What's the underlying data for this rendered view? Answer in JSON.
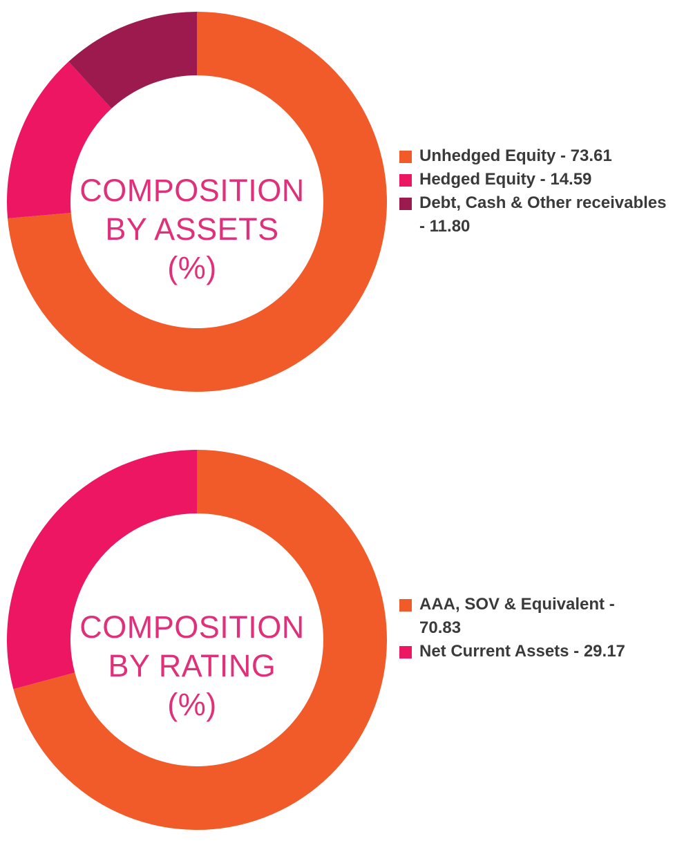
{
  "chart_data": [
    {
      "type": "pie",
      "title": "COMPOSITION BY ASSETS (%)",
      "center_lines": [
        "COMPOSITION",
        "BY ASSETS",
        "(%)"
      ],
      "categories": [
        "Unhedged Equity",
        "Hedged Equity",
        "Debt, Cash & Other receivables"
      ],
      "values": [
        73.61,
        14.59,
        11.8
      ],
      "legend_lines": [
        [
          "Unhedged Equity - 73.61"
        ],
        [
          "Hedged Equity - 14.59"
        ],
        [
          "Debt, Cash & Other receivables",
          "- 11.80"
        ]
      ],
      "colors": [
        "#f15a29",
        "#ec1663",
        "#9c1a4e"
      ],
      "legend_position": "right",
      "style": "donut"
    },
    {
      "type": "pie",
      "title": "COMPOSITION BY RATING (%)",
      "center_lines": [
        "COMPOSITION",
        "BY RATING",
        "(%)"
      ],
      "categories": [
        "AAA, SOV & Equivalent",
        "Net Current Assets"
      ],
      "values": [
        70.83,
        29.17
      ],
      "legend_lines": [
        [
          "AAA, SOV & Equivalent -",
          "70.83"
        ],
        [
          "Net Current Assets - 29.17"
        ]
      ],
      "colors": [
        "#f15a29",
        "#ec1663"
      ],
      "legend_position": "right",
      "style": "donut"
    }
  ]
}
